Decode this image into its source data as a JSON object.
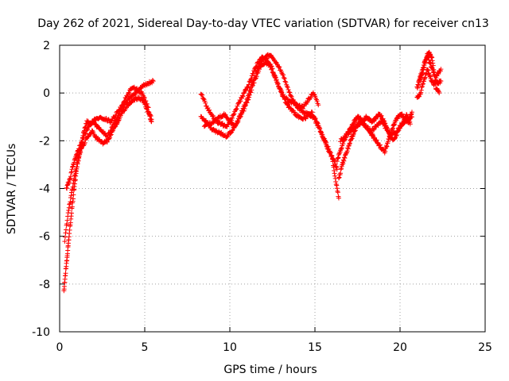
{
  "chart_data": {
    "type": "scatter",
    "title": "Day 262 of 2021, Sidereal Day-to-day VTEC variation (SDTVAR) for receiver cn13",
    "xlabel": "GPS time / hours",
    "ylabel": "SDTVAR / TECUs",
    "xlim": [
      0,
      25
    ],
    "ylim": [
      -10,
      2
    ],
    "x_ticks": [
      0,
      5,
      10,
      15,
      20,
      25
    ],
    "y_ticks": [
      -10,
      -8,
      -6,
      -4,
      -2,
      0,
      2
    ],
    "grid": true,
    "marker": "+",
    "marker_color": "#ff0000",
    "series": [
      {
        "name": "SDTVAR",
        "segments": [
          {
            "x": [
              0.25,
              0.35,
              0.45,
              0.55,
              0.7,
              0.85,
              1.0,
              1.2,
              1.4,
              1.6,
              1.8,
              2.0,
              2.2,
              2.5,
              2.8,
              3.1,
              3.4,
              3.7,
              4.0,
              4.3,
              4.6,
              4.9,
              5.2,
              5.5
            ],
            "y": [
              -8.3,
              -7.5,
              -6.8,
              -6.0,
              -5.0,
              -4.0,
              -3.2,
              -2.4,
              -1.7,
              -1.2,
              -1.3,
              -1.2,
              -1.4,
              -1.6,
              -1.8,
              -1.4,
              -1.0,
              -0.6,
              -0.3,
              -0.1,
              0.1,
              0.3,
              0.4,
              0.5
            ]
          },
          {
            "x": [
              0.3,
              0.5,
              0.7,
              0.9,
              1.1,
              1.3,
              1.6,
              1.9,
              2.2,
              2.5,
              2.8,
              3.1,
              3.4,
              3.7,
              4.0,
              4.3,
              4.6,
              4.9,
              5.2,
              5.4
            ],
            "y": [
              -6.2,
              -5.0,
              -4.2,
              -3.4,
              -2.7,
              -2.3,
              -1.9,
              -1.6,
              -1.9,
              -2.1,
              -2.0,
              -1.6,
              -1.2,
              -0.8,
              -0.5,
              -0.3,
              -0.2,
              -0.3,
              -0.8,
              -1.2
            ]
          },
          {
            "x": [
              0.4,
              0.6,
              0.8,
              1.0,
              1.2,
              1.5,
              1.8,
              2.1,
              2.4,
              2.7,
              3.0,
              3.3,
              3.6,
              3.9,
              4.2,
              4.5,
              4.8,
              5.1,
              5.4
            ],
            "y": [
              -4.0,
              -3.6,
              -3.0,
              -2.6,
              -2.2,
              -1.7,
              -1.3,
              -1.1,
              -1.0,
              -1.1,
              -1.2,
              -0.9,
              -0.6,
              -0.2,
              0.2,
              0.2,
              0.0,
              -0.4,
              -1.1
            ]
          },
          {
            "x": [
              8.3,
              8.6,
              8.9,
              9.2,
              9.5,
              9.8,
              10.1,
              10.4,
              10.7,
              11.0,
              11.3,
              11.6,
              11.9,
              12.2,
              12.5,
              12.8,
              13.1,
              13.4,
              13.7,
              14.0,
              14.3,
              14.6,
              14.9,
              15.2,
              15.5,
              15.8,
              16.1,
              16.3
            ],
            "y": [
              -1.0,
              -1.2,
              -1.5,
              -1.6,
              -1.7,
              -1.8,
              -1.6,
              -1.3,
              -0.8,
              -0.3,
              0.4,
              1.0,
              1.4,
              1.6,
              1.5,
              1.2,
              0.8,
              0.2,
              -0.3,
              -0.6,
              -0.8,
              -0.9,
              -1.0,
              -1.4,
              -1.9,
              -2.4,
              -2.8,
              -3.2
            ]
          },
          {
            "x": [
              8.3,
              8.6,
              8.9,
              9.2,
              9.5,
              9.8,
              10.1,
              10.4,
              10.7,
              11.0,
              11.3,
              11.6,
              11.9,
              12.2,
              12.5,
              12.8,
              13.1,
              13.4,
              13.7,
              14.0,
              14.3,
              14.6,
              14.9,
              15.2
            ],
            "y": [
              0.0,
              -0.5,
              -0.9,
              -1.2,
              -1.3,
              -1.4,
              -1.1,
              -0.6,
              -0.2,
              0.2,
              0.7,
              1.2,
              1.5,
              1.4,
              1.0,
              0.4,
              -0.1,
              -0.3,
              -0.4,
              -0.5,
              -0.6,
              -0.3,
              0.0,
              -0.5
            ]
          },
          {
            "x": [
              8.5,
              8.8,
              9.1,
              9.4,
              9.7,
              10.0,
              10.3,
              10.6,
              10.9,
              11.2,
              11.5,
              11.8,
              12.1,
              12.4,
              12.7,
              13.0,
              13.3,
              13.6,
              13.9,
              14.2,
              14.5,
              14.8,
              15.1,
              15.4,
              15.7,
              16.0,
              16.2,
              16.4
            ],
            "y": [
              -1.4,
              -1.3,
              -1.2,
              -1.0,
              -0.9,
              -1.2,
              -1.4,
              -1.0,
              -0.6,
              0.0,
              0.6,
              1.1,
              1.3,
              1.1,
              0.6,
              0.1,
              -0.4,
              -0.7,
              -0.9,
              -1.1,
              -1.0,
              -0.8,
              -1.2,
              -1.7,
              -2.2,
              -2.6,
              -3.6,
              -4.4
            ]
          },
          {
            "x": [
              16.3,
              16.5,
              16.7,
              16.9,
              17.1,
              17.3,
              17.5,
              17.7,
              17.9,
              18.1,
              18.3,
              18.5,
              18.7,
              18.9,
              19.1,
              19.3,
              19.5,
              19.7,
              19.9,
              20.1,
              20.3,
              20.5,
              20.7
            ],
            "y": [
              -2.8,
              -2.4,
              -2.0,
              -1.7,
              -1.5,
              -1.2,
              -1.0,
              -1.1,
              -1.3,
              -1.5,
              -1.7,
              -1.9,
              -2.1,
              -2.3,
              -2.5,
              -2.0,
              -1.6,
              -1.2,
              -1.0,
              -0.9,
              -1.1,
              -1.2,
              -0.8
            ]
          },
          {
            "x": [
              16.4,
              16.6,
              16.8,
              17.0,
              17.2,
              17.4,
              17.6,
              17.8,
              18.0,
              18.2,
              18.4,
              18.6,
              18.8,
              19.0,
              19.2,
              19.4,
              19.6,
              19.8,
              20.0,
              20.2,
              20.4,
              20.6
            ],
            "y": [
              -3.6,
              -3.0,
              -2.6,
              -2.2,
              -1.8,
              -1.5,
              -1.3,
              -1.2,
              -1.0,
              -1.1,
              -1.2,
              -1.0,
              -0.9,
              -1.1,
              -1.4,
              -1.8,
              -2.0,
              -1.7,
              -1.4,
              -1.2,
              -0.9,
              -1.3
            ]
          },
          {
            "x": [
              16.5,
              16.8,
              17.1,
              17.4,
              17.7,
              18.0,
              18.3,
              18.6,
              18.9,
              19.2,
              19.5,
              19.8,
              20.1,
              20.4,
              20.7
            ],
            "y": [
              -2.0,
              -1.8,
              -1.6,
              -1.4,
              -1.2,
              -1.4,
              -1.6,
              -1.4,
              -1.2,
              -1.5,
              -1.8,
              -1.6,
              -1.3,
              -1.1,
              -1.0
            ]
          },
          {
            "x": [
              21.0,
              21.2,
              21.4,
              21.6,
              21.8,
              22.0,
              22.2,
              22.4
            ],
            "y": [
              0.2,
              0.6,
              1.1,
              1.6,
              1.2,
              0.8,
              0.4,
              0.5
            ]
          },
          {
            "x": [
              21.0,
              21.2,
              21.4,
              21.6,
              21.8,
              22.0,
              22.2,
              22.4
            ],
            "y": [
              -0.2,
              0.0,
              0.5,
              1.0,
              0.6,
              0.3,
              0.8,
              1.0
            ]
          },
          {
            "x": [
              21.1,
              21.3,
              21.5,
              21.7,
              21.9,
              22.1,
              22.3
            ],
            "y": [
              0.5,
              0.9,
              1.4,
              1.7,
              1.4,
              0.2,
              0.0
            ]
          }
        ]
      }
    ]
  }
}
